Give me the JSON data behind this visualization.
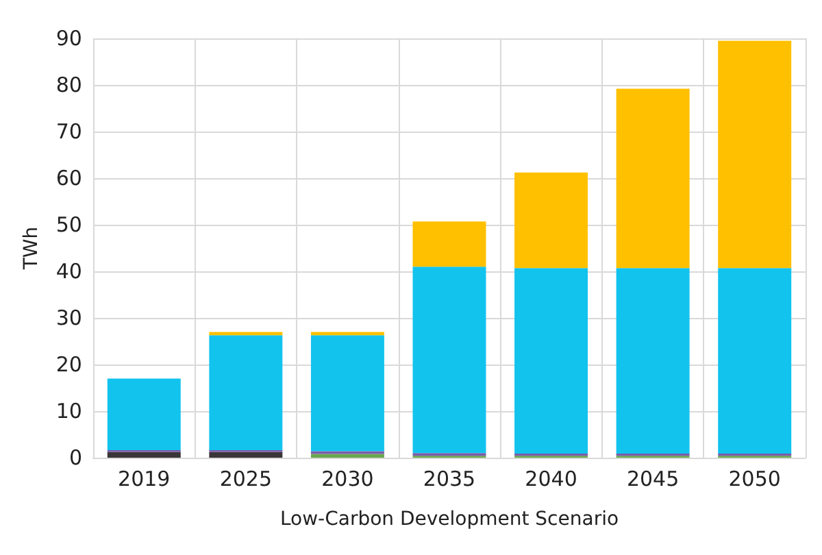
{
  "chart_data": {
    "type": "bar",
    "stacked": true,
    "xlabel": "Low-Carbon Development Scenario",
    "ylabel": "TWh",
    "categories": [
      "2019",
      "2025",
      "2030",
      "2035",
      "2040",
      "2045",
      "2050"
    ],
    "series": [
      {
        "color": "#3a3538",
        "values": [
          1.2,
          1.2,
          0,
          0,
          0,
          0,
          0
        ]
      },
      {
        "color": "#6aa84f",
        "values": [
          0,
          0,
          0.8,
          0.4,
          0.4,
          0.4,
          0.4
        ]
      },
      {
        "color": "#7a5ca8",
        "values": [
          0.4,
          0.4,
          0.6,
          0.6,
          0.5,
          0.5,
          0.5
        ]
      },
      {
        "color": "#12c3ee",
        "values": [
          15.4,
          24.7,
          24.9,
          40,
          39.8,
          39.8,
          39.8
        ]
      },
      {
        "color": "#ffc000",
        "values": [
          0,
          0.7,
          0.7,
          9.7,
          20.5,
          38.5,
          48.8
        ]
      }
    ],
    "ylim": [
      0,
      90
    ],
    "yticks": [
      0,
      10,
      20,
      30,
      40,
      50,
      60,
      70,
      80,
      90
    ],
    "grid": true
  }
}
